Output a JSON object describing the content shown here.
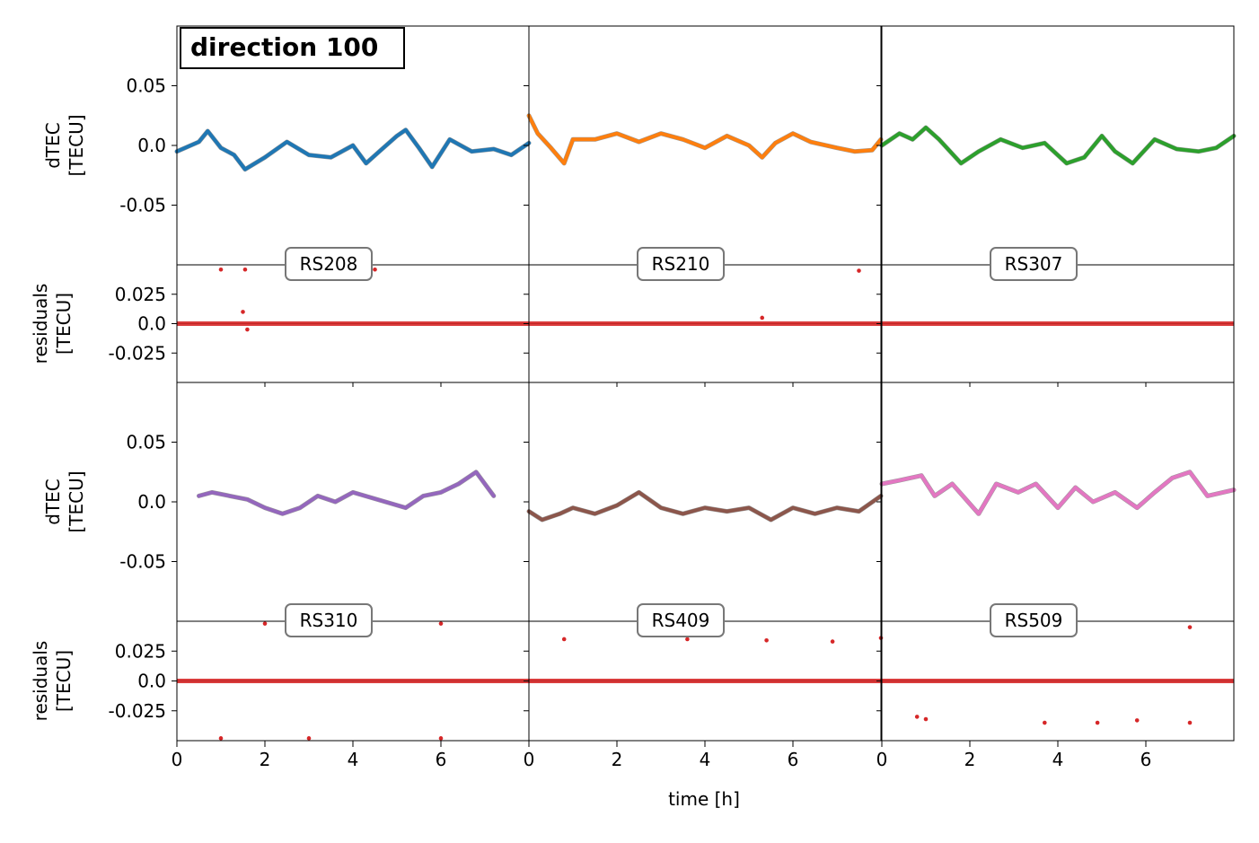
{
  "figure_title": "direction 100",
  "x_axis_label": "time [h]",
  "chart_data": [
    {
      "type": "scatter",
      "station": "RS208",
      "ylabel": [
        "dTEC",
        "[TECU]"
      ],
      "residual_ylabel": [
        "residuals",
        "[TECU]"
      ],
      "color": "#1f77b4",
      "residual_color": "#d62728",
      "xlim": [
        0,
        8
      ],
      "ylim": [
        -0.1,
        0.1
      ],
      "residual_ylim": [
        -0.05,
        0.05
      ],
      "xticks": [
        "0",
        "2",
        "4",
        "6"
      ],
      "yticks": [
        "0.05",
        "0.0",
        "-0.05"
      ],
      "residual_yticks": [
        "0.025",
        "0.0",
        "-0.025"
      ],
      "series_x_h": [
        0,
        0.5,
        0.7,
        1.0,
        1.3,
        1.55,
        2.0,
        2.5,
        3.0,
        3.5,
        4.0,
        4.3,
        4.6,
        5.0,
        5.2,
        5.5,
        5.8,
        6.2,
        6.7,
        7.2,
        7.6,
        8.0
      ],
      "series_y": [
        -0.005,
        0.003,
        0.012,
        -0.002,
        -0.008,
        -0.02,
        -0.01,
        0.003,
        -0.008,
        -0.01,
        0.0,
        -0.015,
        -0.005,
        0.008,
        0.013,
        -0.002,
        -0.018,
        0.005,
        -0.005,
        -0.003,
        -0.008,
        0.002
      ],
      "residual_points": [
        {
          "x": 1.0,
          "y": 0.046
        },
        {
          "x": 1.55,
          "y": 0.046
        },
        {
          "x": 4.5,
          "y": 0.046
        },
        {
          "x": 1.5,
          "y": 0.01
        },
        {
          "x": 1.6,
          "y": -0.005
        }
      ]
    },
    {
      "type": "scatter",
      "station": "RS210",
      "color": "#ff7f0e",
      "residual_color": "#d62728",
      "xlim": [
        0,
        8
      ],
      "ylim": [
        -0.1,
        0.1
      ],
      "residual_ylim": [
        -0.05,
        0.05
      ],
      "xticks": [
        "0",
        "2",
        "4",
        "6"
      ],
      "series_x_h": [
        0,
        0.2,
        0.5,
        0.8,
        1.0,
        1.5,
        2.0,
        2.5,
        3.0,
        3.5,
        4.0,
        4.5,
        5.0,
        5.3,
        5.6,
        6.0,
        6.4,
        7.0,
        7.4,
        7.8,
        8.0
      ],
      "series_y": [
        0.025,
        0.01,
        -0.002,
        -0.015,
        0.005,
        0.005,
        0.01,
        0.003,
        0.01,
        0.005,
        -0.002,
        0.008,
        0.0,
        -0.01,
        0.002,
        0.01,
        0.003,
        -0.002,
        -0.005,
        -0.004,
        0.005
      ],
      "residual_points": [
        {
          "x": 7.5,
          "y": 0.045
        },
        {
          "x": 5.3,
          "y": 0.005
        }
      ]
    },
    {
      "type": "scatter",
      "station": "RS307",
      "color": "#2ca02c",
      "residual_color": "#d62728",
      "xlim": [
        0,
        8
      ],
      "ylim": [
        -0.1,
        0.1
      ],
      "residual_ylim": [
        -0.05,
        0.05
      ],
      "xticks": [
        "0",
        "2",
        "4",
        "6"
      ],
      "series_x_h": [
        0,
        0.4,
        0.7,
        1.0,
        1.3,
        1.8,
        2.2,
        2.7,
        3.2,
        3.7,
        4.2,
        4.6,
        5.0,
        5.3,
        5.7,
        6.2,
        6.7,
        7.2,
        7.6,
        8.0
      ],
      "series_y": [
        0.0,
        0.01,
        0.005,
        0.015,
        0.005,
        -0.015,
        -0.005,
        0.005,
        -0.002,
        0.002,
        -0.015,
        -0.01,
        0.008,
        -0.005,
        -0.015,
        0.005,
        -0.003,
        -0.005,
        -0.002,
        0.008
      ],
      "residual_points": []
    },
    {
      "type": "scatter",
      "station": "RS310",
      "color": "#9467bd",
      "residual_color": "#d62728",
      "xlim": [
        0,
        8
      ],
      "ylim": [
        -0.1,
        0.1
      ],
      "residual_ylim": [
        -0.05,
        0.05
      ],
      "xticks": [
        "0",
        "2",
        "4",
        "6"
      ],
      "series_x_h": [
        0.5,
        0.8,
        1.2,
        1.6,
        2.0,
        2.4,
        2.8,
        3.2,
        3.6,
        4.0,
        5.2,
        5.6,
        6.0,
        6.4,
        6.8,
        7.2
      ],
      "series_y": [
        0.005,
        0.008,
        0.005,
        0.002,
        -0.005,
        -0.01,
        -0.005,
        0.005,
        0.0,
        0.008,
        -0.005,
        0.005,
        0.008,
        0.015,
        0.025,
        0.005
      ],
      "residual_points": [
        {
          "x": 1.0,
          "y": -0.048
        },
        {
          "x": 3.0,
          "y": -0.048
        },
        {
          "x": 6.0,
          "y": -0.048
        },
        {
          "x": 2.0,
          "y": 0.048
        },
        {
          "x": 6.0,
          "y": 0.048
        }
      ]
    },
    {
      "type": "scatter",
      "station": "RS409",
      "color": "#8c564b",
      "residual_color": "#d62728",
      "xlim": [
        0,
        8
      ],
      "ylim": [
        -0.1,
        0.1
      ],
      "residual_ylim": [
        -0.05,
        0.05
      ],
      "xticks": [
        "0",
        "2",
        "4",
        "6"
      ],
      "series_x_h": [
        0,
        0.3,
        0.7,
        1.0,
        1.5,
        2.0,
        2.5,
        3.0,
        3.5,
        4.0,
        4.5,
        5.0,
        5.5,
        6.0,
        6.5,
        7.0,
        7.5,
        8.0
      ],
      "series_y": [
        -0.008,
        -0.015,
        -0.01,
        -0.005,
        -0.01,
        -0.003,
        0.008,
        -0.005,
        -0.01,
        -0.005,
        -0.008,
        -0.005,
        -0.015,
        -0.005,
        -0.01,
        -0.005,
        -0.008,
        0.005
      ],
      "residual_points": [
        {
          "x": 0.8,
          "y": 0.035
        },
        {
          "x": 3.6,
          "y": 0.035
        },
        {
          "x": 5.4,
          "y": 0.034
        },
        {
          "x": 6.9,
          "y": 0.033
        },
        {
          "x": 8.0,
          "y": 0.036
        }
      ]
    },
    {
      "type": "scatter",
      "station": "RS509",
      "color": "#e377c2",
      "residual_color": "#d62728",
      "xlim": [
        0,
        8
      ],
      "ylim": [
        -0.1,
        0.1
      ],
      "residual_ylim": [
        -0.05,
        0.05
      ],
      "xticks": [
        "0",
        "2",
        "4",
        "6"
      ],
      "series_x_h": [
        0,
        0.4,
        0.9,
        1.2,
        1.6,
        2.2,
        2.6,
        3.1,
        3.5,
        4.0,
        4.4,
        4.8,
        5.3,
        5.8,
        6.2,
        6.6,
        7.0,
        7.4,
        8.0
      ],
      "series_y": [
        0.015,
        0.018,
        0.022,
        0.005,
        0.015,
        -0.01,
        0.015,
        0.008,
        0.015,
        -0.005,
        0.012,
        0.0,
        0.008,
        -0.005,
        0.008,
        0.02,
        0.025,
        0.005,
        0.01
      ],
      "residual_points": [
        {
          "x": 0.8,
          "y": -0.03
        },
        {
          "x": 1.0,
          "y": -0.032
        },
        {
          "x": 3.7,
          "y": -0.035
        },
        {
          "x": 4.9,
          "y": -0.035
        },
        {
          "x": 5.8,
          "y": -0.033
        },
        {
          "x": 7.0,
          "y": -0.035
        },
        {
          "x": 7.0,
          "y": 0.045
        }
      ]
    }
  ]
}
